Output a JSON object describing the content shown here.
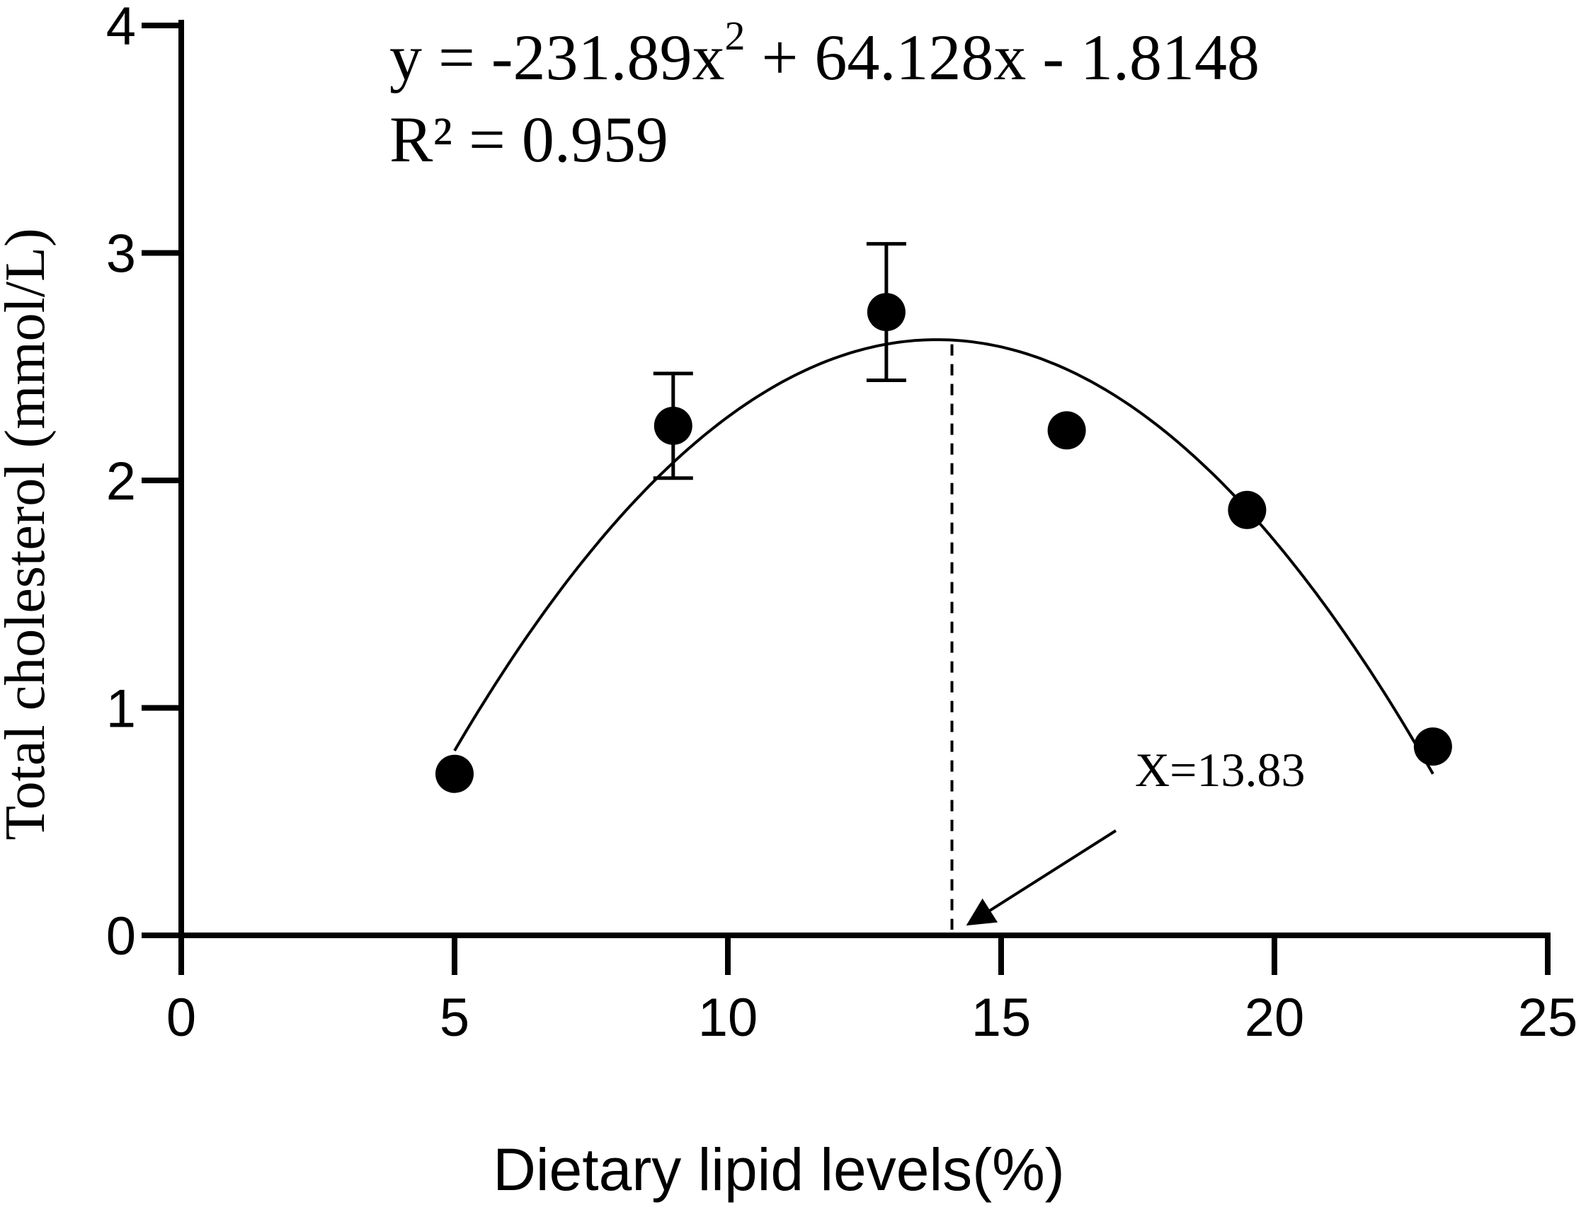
{
  "chart_data": {
    "type": "scatter",
    "title": "",
    "xlabel": "Dietary lipid levels(%)",
    "ylabel": "Total cholesterol (mmol/L)",
    "xlim": [
      0,
      25
    ],
    "ylim": [
      0,
      4
    ],
    "x_ticks": [
      "0",
      "5",
      "10",
      "15",
      "20",
      "25"
    ],
    "y_ticks": [
      "0",
      "1",
      "2",
      "3",
      "4"
    ],
    "grid": false,
    "points": [
      {
        "x": 5.0,
        "y": 0.71
      },
      {
        "x": 9.0,
        "y": 2.24,
        "err": 0.23
      },
      {
        "x": 12.9,
        "y": 2.74,
        "err": 0.3
      },
      {
        "x": 16.2,
        "y": 2.22
      },
      {
        "x": 19.5,
        "y": 1.87
      },
      {
        "x": 22.9,
        "y": 0.83
      }
    ],
    "fit": {
      "a": -231.89,
      "b": 64.128,
      "c": -1.8148,
      "x_range": [
        5,
        22.9
      ],
      "eq_main": "y = -231.89x",
      "eq_exp": "2",
      "eq_rest": " + 64.128x - 1.8148",
      "r2": "R² = 0.959"
    },
    "annotation": {
      "label": "X=13.83",
      "x": 14.1
    }
  }
}
